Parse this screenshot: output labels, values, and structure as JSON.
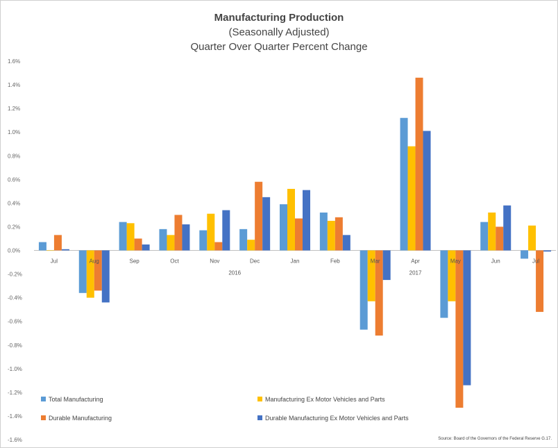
{
  "chart_data": {
    "type": "bar",
    "title": "Manufacturing Production",
    "subtitle": "(Seasonally Adjusted)",
    "subtitle2": "Quarter Over Quarter Percent Change",
    "categories": [
      "Jul",
      "Aug",
      "Sep",
      "Oct",
      "Nov",
      "Dec",
      "Jan",
      "Feb",
      "Mar",
      "Apr",
      "May",
      "Jun",
      "Jul"
    ],
    "year_labels": [
      {
        "text": "2016",
        "category_index": 4.5
      },
      {
        "text": "2017",
        "category_index": 9
      }
    ],
    "series": [
      {
        "name": "Total Manufacturing",
        "color": "#5b9bd5",
        "values": [
          0.07,
          -0.36,
          0.24,
          0.18,
          0.17,
          0.18,
          0.39,
          0.32,
          -0.67,
          1.12,
          -0.57,
          0.24,
          -0.07
        ]
      },
      {
        "name": "Manufacturing Ex Motor Vehicles and Parts",
        "color": "#ffc000",
        "values": [
          0.0,
          -0.4,
          0.23,
          0.13,
          0.31,
          0.09,
          0.52,
          0.25,
          -0.43,
          0.88,
          -0.43,
          0.32,
          0.21
        ]
      },
      {
        "name": "Durable Manufacturing",
        "color": "#ed7d31",
        "values": [
          0.13,
          -0.34,
          0.1,
          0.3,
          0.07,
          0.58,
          0.27,
          0.28,
          -0.72,
          1.46,
          -1.33,
          0.2,
          -0.52
        ]
      },
      {
        "name": "Durable Manufacturing Ex Motor Vehicles and Parts",
        "color": "#4472c4",
        "values": [
          0.01,
          -0.44,
          0.05,
          0.22,
          0.34,
          0.45,
          0.51,
          0.13,
          -0.25,
          1.01,
          -1.14,
          0.38,
          -0.01
        ]
      }
    ],
    "y_ticks": [
      "1.6%",
      "1.4%",
      "1.2%",
      "1.0%",
      "0.8%",
      "0.6%",
      "0.4%",
      "0.2%",
      "0.0%",
      "-0.2%",
      "-0.4%",
      "-0.6%",
      "-0.8%",
      "-1.0%",
      "-1.2%",
      "-1.4%",
      "-1.6%"
    ],
    "ylim": [
      -1.6,
      1.6
    ],
    "grid": false,
    "legend_placement": "bottom",
    "source": "Source: Board of the Governors of the Federal Reserve G.17."
  }
}
